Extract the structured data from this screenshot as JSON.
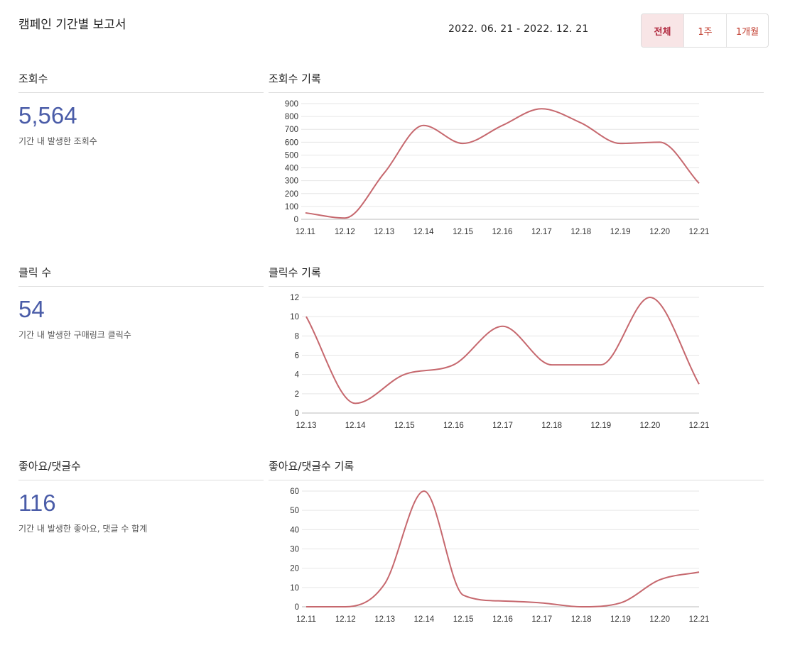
{
  "header": {
    "title": "캠페인 기간별 보고서",
    "date_range": "2022. 06. 21 - 2022. 12. 21",
    "periods": [
      {
        "label": "전체",
        "active": true
      },
      {
        "label": "1주",
        "active": false
      },
      {
        "label": "1개월",
        "active": false
      }
    ]
  },
  "colors": {
    "accent": "#c0392b",
    "line": "#c6686e",
    "stat": "#4a5ca8",
    "active_bg": "#f8e5e6"
  },
  "sections": [
    {
      "stat_title": "조회수",
      "stat_value": "5,564",
      "stat_desc": "기간 내 발생한 조회수",
      "chart_title": "조회수 기록"
    },
    {
      "stat_title": "클릭 수",
      "stat_value": "54",
      "stat_desc": "기간 내 발생한 구매링크 클릭수",
      "chart_title": "클릭수 기록"
    },
    {
      "stat_title": "좋아요/댓글수",
      "stat_value": "116",
      "stat_desc": "기간 내 발생한 좋아요, 댓글 수 합계",
      "chart_title": "좋아요/댓글수 기록"
    }
  ],
  "chart_data": [
    {
      "type": "line",
      "title": "",
      "categories": [
        "12.11",
        "12.12",
        "12.13",
        "12.14",
        "12.15",
        "12.16",
        "12.17",
        "12.18",
        "12.19",
        "12.20",
        "12.21"
      ],
      "values": [
        50,
        10,
        360,
        730,
        590,
        730,
        860,
        750,
        590,
        600,
        280
      ],
      "yticks": [
        0,
        100,
        200,
        300,
        400,
        500,
        600,
        700,
        800,
        900
      ],
      "ylim": [
        0,
        900
      ],
      "grid": true
    },
    {
      "type": "line",
      "title": "",
      "categories": [
        "12.13",
        "12.14",
        "12.15",
        "12.16",
        "12.17",
        "12.18",
        "12.19",
        "12.20",
        "12.21"
      ],
      "values": [
        10,
        1,
        4,
        5,
        9,
        5,
        5,
        12,
        3
      ],
      "yticks": [
        0,
        2,
        4,
        6,
        8,
        10,
        12
      ],
      "ylim": [
        0,
        12
      ],
      "grid": true
    },
    {
      "type": "line",
      "title": "",
      "categories": [
        "12.11",
        "12.12",
        "12.13",
        "12.14",
        "12.15",
        "12.16",
        "12.17",
        "12.18",
        "12.19",
        "12.20",
        "12.21"
      ],
      "values": [
        0,
        0,
        12,
        60,
        6,
        3,
        2,
        0,
        2,
        14,
        18
      ],
      "yticks": [
        0,
        10,
        20,
        30,
        40,
        50,
        60
      ],
      "ylim": [
        0,
        60
      ],
      "grid": true
    }
  ]
}
